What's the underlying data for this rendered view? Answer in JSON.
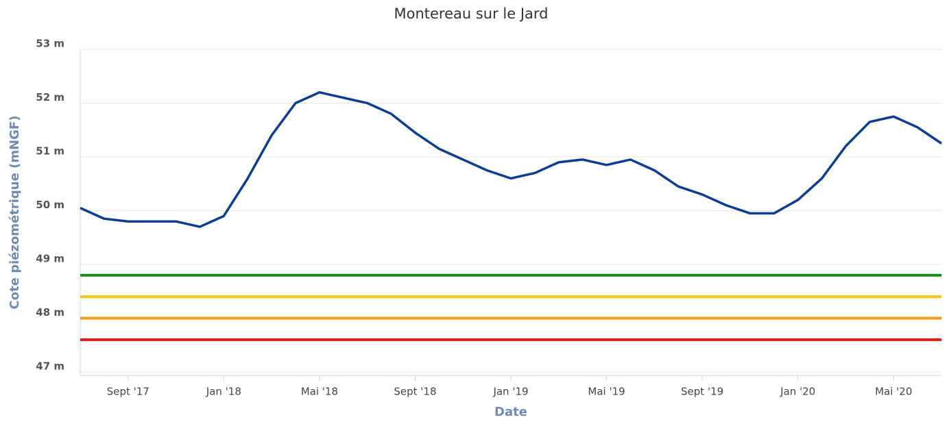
{
  "chart_data": {
    "type": "line",
    "title": "Montereau sur le Jard",
    "x_label": "Date",
    "y_label": "Cote piézométrique (mNGF)",
    "x": [
      "2017-07",
      "2017-08",
      "2017-09",
      "2017-10",
      "2017-11",
      "2017-12",
      "2018-01",
      "2018-02",
      "2018-03",
      "2018-04",
      "2018-05",
      "2018-06",
      "2018-07",
      "2018-08",
      "2018-09",
      "2018-10",
      "2018-11",
      "2018-12",
      "2019-01",
      "2019-02",
      "2019-03",
      "2019-04",
      "2019-05",
      "2019-06",
      "2019-07",
      "2019-08",
      "2019-09",
      "2019-10",
      "2019-11",
      "2019-12",
      "2020-01",
      "2020-02",
      "2020-03",
      "2020-04",
      "2020-05",
      "2020-06",
      "2020-07"
    ],
    "series": [
      {
        "color": "#0b3d91",
        "values": [
          50.05,
          49.85,
          49.8,
          49.8,
          49.8,
          49.7,
          49.9,
          50.6,
          51.4,
          52.0,
          52.2,
          52.1,
          52.0,
          51.8,
          51.45,
          51.15,
          50.95,
          50.75,
          50.6,
          50.7,
          50.9,
          50.95,
          50.85,
          50.95,
          50.75,
          50.45,
          50.3,
          50.1,
          49.95,
          49.95,
          50.2,
          50.6,
          51.2,
          51.65,
          51.75,
          51.55,
          51.25
        ]
      }
    ],
    "thresholds": [
      {
        "value": 48.8,
        "color": "#1a8a1a"
      },
      {
        "value": 48.4,
        "color": "#f5c518"
      },
      {
        "value": 48.0,
        "color": "#f59a1a"
      },
      {
        "value": 47.6,
        "color": "#e31a1a"
      }
    ],
    "xlim": [
      "2017-07",
      "2020-07"
    ],
    "xticks": [
      {
        "value": "2017-09",
        "label": "Sept '17"
      },
      {
        "value": "2018-01",
        "label": "Jan '18"
      },
      {
        "value": "2018-05",
        "label": "Mai '18"
      },
      {
        "value": "2018-09",
        "label": "Sept '18"
      },
      {
        "value": "2019-01",
        "label": "Jan '19"
      },
      {
        "value": "2019-05",
        "label": "Mai '19"
      },
      {
        "value": "2019-09",
        "label": "Sept '19"
      },
      {
        "value": "2020-01",
        "label": "Jan '20"
      },
      {
        "value": "2020-05",
        "label": "Mai '20"
      }
    ],
    "ylim": [
      47,
      53
    ],
    "yticks": [
      {
        "value": 47,
        "label": "47 m"
      },
      {
        "value": 48,
        "label": "48 m"
      },
      {
        "value": 49,
        "label": "49 m"
      },
      {
        "value": 50,
        "label": "50 m"
      },
      {
        "value": 51,
        "label": "51 m"
      },
      {
        "value": 52,
        "label": "52 m"
      },
      {
        "value": 53,
        "label": "53 m"
      }
    ],
    "grid": true
  }
}
